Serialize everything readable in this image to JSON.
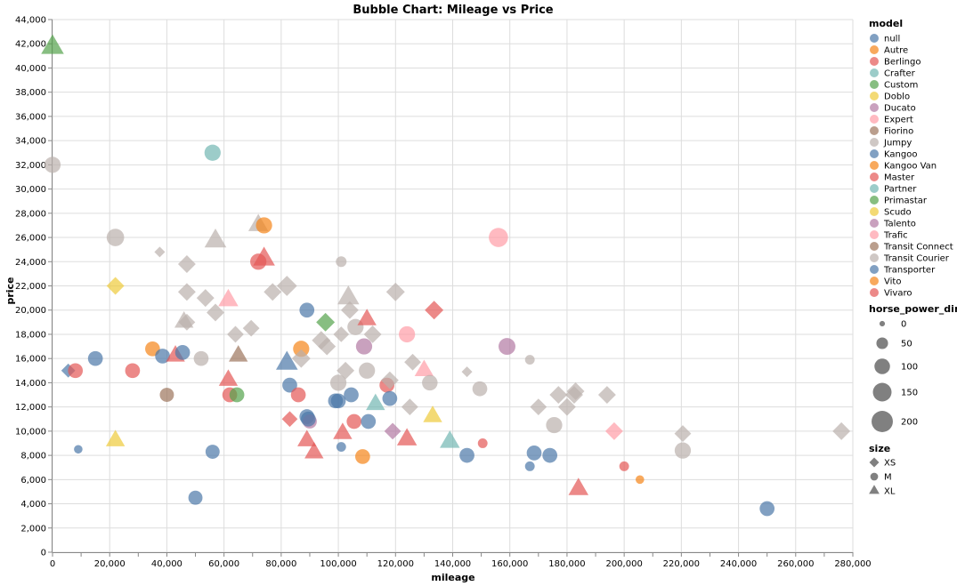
{
  "chart_data": {
    "type": "scatter",
    "title": "Bubble Chart: Mileage vs Price",
    "xlabel": "mileage",
    "ylabel": "price",
    "xlim": [
      0,
      280000
    ],
    "ylim": [
      0,
      44000
    ],
    "x_ticks": [
      0,
      20000,
      40000,
      60000,
      80000,
      100000,
      120000,
      140000,
      160000,
      180000,
      200000,
      220000,
      240000,
      260000,
      280000
    ],
    "x_tick_labels": [
      "0",
      "20,000",
      "40,000",
      "60,000",
      "80,000",
      "100,000",
      "120,000",
      "140,000",
      "160,000",
      "180,000",
      "200,000",
      "220,000",
      "240,000",
      "260,000",
      "280,000"
    ],
    "y_ticks": [
      0,
      2000,
      4000,
      6000,
      8000,
      10000,
      12000,
      14000,
      16000,
      18000,
      20000,
      22000,
      24000,
      26000,
      28000,
      30000,
      32000,
      34000,
      36000,
      38000,
      40000,
      42000,
      44000
    ],
    "y_tick_labels": [
      "0",
      "2,000",
      "4,000",
      "6,000",
      "8,000",
      "10,000",
      "12,000",
      "14,000",
      "16,000",
      "18,000",
      "20,000",
      "22,000",
      "24,000",
      "26,000",
      "28,000",
      "30,000",
      "32,000",
      "34,000",
      "36,000",
      "38,000",
      "40,000",
      "42,000",
      "44,000"
    ],
    "grid": true,
    "legend_placement": "right",
    "color_legend": {
      "title": "model",
      "entries": [
        {
          "label": "null",
          "color": "#4c78a8"
        },
        {
          "label": "Autre",
          "color": "#f58518"
        },
        {
          "label": "Berlingo",
          "color": "#e45756"
        },
        {
          "label": "Crafter",
          "color": "#72b7b2"
        },
        {
          "label": "Custom",
          "color": "#54a24b"
        },
        {
          "label": "Doblo",
          "color": "#eeca3b"
        },
        {
          "label": "Ducato",
          "color": "#b279a2"
        },
        {
          "label": "Expert",
          "color": "#ff9da6"
        },
        {
          "label": "Fiorino",
          "color": "#9d755d"
        },
        {
          "label": "Jumpy",
          "color": "#bab0ac"
        },
        {
          "label": "Kangoo",
          "color": "#4c78a8"
        },
        {
          "label": "Kangoo Van",
          "color": "#f58518"
        },
        {
          "label": "Master",
          "color": "#e45756"
        },
        {
          "label": "Partner",
          "color": "#72b7b2"
        },
        {
          "label": "Primastar",
          "color": "#54a24b"
        },
        {
          "label": "Scudo",
          "color": "#eeca3b"
        },
        {
          "label": "Talento",
          "color": "#b279a2"
        },
        {
          "label": "Trafic",
          "color": "#ff9da6"
        },
        {
          "label": "Transit Connect",
          "color": "#9d755d"
        },
        {
          "label": "Transit Courier",
          "color": "#bab0ac"
        },
        {
          "label": "Transporter",
          "color": "#4c78a8"
        },
        {
          "label": "Vito",
          "color": "#f58518"
        },
        {
          "label": "Vivaro",
          "color": "#e45756"
        }
      ]
    },
    "size_legend": {
      "title": "horse_power_din",
      "entries": [
        {
          "label": "0",
          "value": 0
        },
        {
          "label": "50",
          "value": 50
        },
        {
          "label": "100",
          "value": 100
        },
        {
          "label": "150",
          "value": 150
        },
        {
          "label": "200",
          "value": 200
        }
      ]
    },
    "shape_legend": {
      "title": "size",
      "entries": [
        {
          "label": "XS",
          "shape": "diamond"
        },
        {
          "label": "M",
          "shape": "circle"
        },
        {
          "label": "XL",
          "shape": "triangle"
        }
      ]
    },
    "points": [
      {
        "x": 0,
        "y": 41700,
        "shape": "triangle",
        "color": "#54a24b",
        "hp": 120
      },
      {
        "x": 0,
        "y": 32000,
        "shape": "circle",
        "color": "#bab0ac",
        "hp": 110
      },
      {
        "x": 5500,
        "y": 15000,
        "shape": "diamond",
        "color": "#4c78a8",
        "hp": 45
      },
      {
        "x": 8000,
        "y": 15000,
        "shape": "circle",
        "color": "#e45756",
        "hp": 90
      },
      {
        "x": 9000,
        "y": 8500,
        "shape": "circle",
        "color": "#4c78a8",
        "hp": 20
      },
      {
        "x": 15000,
        "y": 16000,
        "shape": "circle",
        "color": "#4c78a8",
        "hp": 90
      },
      {
        "x": 22000,
        "y": 26000,
        "shape": "circle",
        "color": "#bab0ac",
        "hp": 130
      },
      {
        "x": 22000,
        "y": 22000,
        "shape": "diamond",
        "color": "#eeca3b",
        "hp": 80
      },
      {
        "x": 22000,
        "y": 9200,
        "shape": "triangle",
        "color": "#eeca3b",
        "hp": 80
      },
      {
        "x": 28000,
        "y": 15000,
        "shape": "circle",
        "color": "#e45756",
        "hp": 90
      },
      {
        "x": 35000,
        "y": 16800,
        "shape": "circle",
        "color": "#f58518",
        "hp": 90
      },
      {
        "x": 37500,
        "y": 24800,
        "shape": "diamond",
        "color": "#bab0ac",
        "hp": 20
      },
      {
        "x": 38500,
        "y": 16200,
        "shape": "circle",
        "color": "#4c78a8",
        "hp": 90
      },
      {
        "x": 40000,
        "y": 13000,
        "shape": "circle",
        "color": "#9d755d",
        "hp": 80
      },
      {
        "x": 43000,
        "y": 16200,
        "shape": "triangle",
        "color": "#e45756",
        "hp": 80
      },
      {
        "x": 45500,
        "y": 16500,
        "shape": "circle",
        "color": "#4c78a8",
        "hp": 90
      },
      {
        "x": 46000,
        "y": 19000,
        "shape": "triangle",
        "color": "#bab0ac",
        "hp": 80
      },
      {
        "x": 47000,
        "y": 23800,
        "shape": "diamond",
        "color": "#bab0ac",
        "hp": 80
      },
      {
        "x": 47000,
        "y": 21500,
        "shape": "diamond",
        "color": "#bab0ac",
        "hp": 80
      },
      {
        "x": 47000,
        "y": 19000,
        "shape": "diamond",
        "color": "#bab0ac",
        "hp": 70
      },
      {
        "x": 50000,
        "y": 4500,
        "shape": "circle",
        "color": "#4c78a8",
        "hp": 80
      },
      {
        "x": 52000,
        "y": 16000,
        "shape": "circle",
        "color": "#bab0ac",
        "hp": 90
      },
      {
        "x": 53500,
        "y": 21000,
        "shape": "diamond",
        "color": "#bab0ac",
        "hp": 80
      },
      {
        "x": 56000,
        "y": 33000,
        "shape": "circle",
        "color": "#72b7b2",
        "hp": 110
      },
      {
        "x": 56000,
        "y": 8300,
        "shape": "circle",
        "color": "#4c78a8",
        "hp": 80
      },
      {
        "x": 57000,
        "y": 25700,
        "shape": "triangle",
        "color": "#bab0ac",
        "hp": 110
      },
      {
        "x": 57000,
        "y": 19800,
        "shape": "diamond",
        "color": "#bab0ac",
        "hp": 80
      },
      {
        "x": 61500,
        "y": 20800,
        "shape": "triangle",
        "color": "#ff9da6",
        "hp": 90
      },
      {
        "x": 61500,
        "y": 14200,
        "shape": "triangle",
        "color": "#e45756",
        "hp": 80
      },
      {
        "x": 62000,
        "y": 13000,
        "shape": "circle",
        "color": "#e45756",
        "hp": 90
      },
      {
        "x": 64000,
        "y": 18000,
        "shape": "diamond",
        "color": "#bab0ac",
        "hp": 70
      },
      {
        "x": 64500,
        "y": 13000,
        "shape": "circle",
        "color": "#54a24b",
        "hp": 90
      },
      {
        "x": 65000,
        "y": 16200,
        "shape": "triangle",
        "color": "#9d755d",
        "hp": 80
      },
      {
        "x": 69500,
        "y": 18500,
        "shape": "diamond",
        "color": "#bab0ac",
        "hp": 70
      },
      {
        "x": 72000,
        "y": 27000,
        "shape": "triangle",
        "color": "#bab0ac",
        "hp": 90
      },
      {
        "x": 72000,
        "y": 24000,
        "shape": "circle",
        "color": "#e45756",
        "hp": 110
      },
      {
        "x": 74000,
        "y": 27000,
        "shape": "circle",
        "color": "#f58518",
        "hp": 110
      },
      {
        "x": 74000,
        "y": 24200,
        "shape": "triangle",
        "color": "#e45756",
        "hp": 110
      },
      {
        "x": 77000,
        "y": 21500,
        "shape": "diamond",
        "color": "#bab0ac",
        "hp": 80
      },
      {
        "x": 82000,
        "y": 15600,
        "shape": "triangle",
        "color": "#4c78a8",
        "hp": 110
      },
      {
        "x": 82000,
        "y": 22000,
        "shape": "diamond",
        "color": "#bab0ac",
        "hp": 110
      },
      {
        "x": 83000,
        "y": 11000,
        "shape": "diamond",
        "color": "#e45756",
        "hp": 60
      },
      {
        "x": 83000,
        "y": 13800,
        "shape": "circle",
        "color": "#4c78a8",
        "hp": 90
      },
      {
        "x": 86000,
        "y": 13000,
        "shape": "circle",
        "color": "#e45756",
        "hp": 90
      },
      {
        "x": 87000,
        "y": 16800,
        "shape": "circle",
        "color": "#f58518",
        "hp": 110
      },
      {
        "x": 87000,
        "y": 16000,
        "shape": "diamond",
        "color": "#bab0ac",
        "hp": 90
      },
      {
        "x": 89000,
        "y": 20000,
        "shape": "circle",
        "color": "#4c78a8",
        "hp": 90
      },
      {
        "x": 89000,
        "y": 11200,
        "shape": "circle",
        "color": "#4c78a8",
        "hp": 90
      },
      {
        "x": 89000,
        "y": 9200,
        "shape": "triangle",
        "color": "#e45756",
        "hp": 80
      },
      {
        "x": 90000,
        "y": 10800,
        "shape": "circle",
        "color": "#b279a2",
        "hp": 80
      },
      {
        "x": 89500,
        "y": 11000,
        "shape": "circle",
        "color": "#4c78a8",
        "hp": 90
      },
      {
        "x": 91500,
        "y": 8200,
        "shape": "triangle",
        "color": "#e45756",
        "hp": 80
      },
      {
        "x": 94000,
        "y": 17500,
        "shape": "diamond",
        "color": "#bab0ac",
        "hp": 90
      },
      {
        "x": 95500,
        "y": 19000,
        "shape": "diamond",
        "color": "#54a24b",
        "hp": 90
      },
      {
        "x": 96000,
        "y": 17000,
        "shape": "diamond",
        "color": "#bab0ac",
        "hp": 80
      },
      {
        "x": 99000,
        "y": 12500,
        "shape": "circle",
        "color": "#4c78a8",
        "hp": 90
      },
      {
        "x": 100000,
        "y": 14000,
        "shape": "circle",
        "color": "#bab0ac",
        "hp": 110
      },
      {
        "x": 100000,
        "y": 12500,
        "shape": "circle",
        "color": "#4c78a8",
        "hp": 90
      },
      {
        "x": 101000,
        "y": 24000,
        "shape": "circle",
        "color": "#bab0ac",
        "hp": 40
      },
      {
        "x": 101000,
        "y": 18000,
        "shape": "diamond",
        "color": "#bab0ac",
        "hp": 60
      },
      {
        "x": 101000,
        "y": 8700,
        "shape": "circle",
        "color": "#4c78a8",
        "hp": 30
      },
      {
        "x": 101500,
        "y": 9800,
        "shape": "triangle",
        "color": "#e45756",
        "hp": 80
      },
      {
        "x": 102500,
        "y": 15000,
        "shape": "diamond",
        "color": "#bab0ac",
        "hp": 80
      },
      {
        "x": 103500,
        "y": 21000,
        "shape": "triangle",
        "color": "#bab0ac",
        "hp": 110
      },
      {
        "x": 104000,
        "y": 20000,
        "shape": "diamond",
        "color": "#bab0ac",
        "hp": 80
      },
      {
        "x": 104500,
        "y": 13000,
        "shape": "circle",
        "color": "#4c78a8",
        "hp": 90
      },
      {
        "x": 105500,
        "y": 10800,
        "shape": "circle",
        "color": "#e45756",
        "hp": 90
      },
      {
        "x": 106000,
        "y": 18600,
        "shape": "circle",
        "color": "#bab0ac",
        "hp": 110
      },
      {
        "x": 108500,
        "y": 7900,
        "shape": "circle",
        "color": "#f58518",
        "hp": 90
      },
      {
        "x": 109000,
        "y": 17000,
        "shape": "circle",
        "color": "#b279a2",
        "hp": 110
      },
      {
        "x": 110000,
        "y": 15000,
        "shape": "circle",
        "color": "#bab0ac",
        "hp": 110
      },
      {
        "x": 110000,
        "y": 19200,
        "shape": "triangle",
        "color": "#e45756",
        "hp": 80
      },
      {
        "x": 110500,
        "y": 10800,
        "shape": "circle",
        "color": "#4c78a8",
        "hp": 90
      },
      {
        "x": 112000,
        "y": 18000,
        "shape": "diamond",
        "color": "#bab0ac",
        "hp": 80
      },
      {
        "x": 113000,
        "y": 12200,
        "shape": "triangle",
        "color": "#72b7b2",
        "hp": 80
      },
      {
        "x": 117000,
        "y": 13800,
        "shape": "circle",
        "color": "#e45756",
        "hp": 90
      },
      {
        "x": 118000,
        "y": 14200,
        "shape": "diamond",
        "color": "#bab0ac",
        "hp": 80
      },
      {
        "x": 118000,
        "y": 12700,
        "shape": "circle",
        "color": "#4c78a8",
        "hp": 90
      },
      {
        "x": 119000,
        "y": 10000,
        "shape": "diamond",
        "color": "#b279a2",
        "hp": 70
      },
      {
        "x": 120000,
        "y": 21500,
        "shape": "diamond",
        "color": "#bab0ac",
        "hp": 90
      },
      {
        "x": 124000,
        "y": 18000,
        "shape": "circle",
        "color": "#ff9da6",
        "hp": 110
      },
      {
        "x": 124000,
        "y": 9300,
        "shape": "triangle",
        "color": "#e45756",
        "hp": 90
      },
      {
        "x": 125000,
        "y": 12000,
        "shape": "diamond",
        "color": "#bab0ac",
        "hp": 70
      },
      {
        "x": 126000,
        "y": 15700,
        "shape": "diamond",
        "color": "#bab0ac",
        "hp": 70
      },
      {
        "x": 130000,
        "y": 15000,
        "shape": "triangle",
        "color": "#ff9da6",
        "hp": 80
      },
      {
        "x": 132000,
        "y": 14000,
        "shape": "circle",
        "color": "#bab0ac",
        "hp": 100
      },
      {
        "x": 133000,
        "y": 11200,
        "shape": "triangle",
        "color": "#eeca3b",
        "hp": 80
      },
      {
        "x": 133500,
        "y": 20000,
        "shape": "diamond",
        "color": "#e45756",
        "hp": 90
      },
      {
        "x": 139000,
        "y": 9100,
        "shape": "triangle",
        "color": "#72b7b2",
        "hp": 90
      },
      {
        "x": 145000,
        "y": 8000,
        "shape": "circle",
        "color": "#4c78a8",
        "hp": 90
      },
      {
        "x": 145000,
        "y": 14900,
        "shape": "diamond",
        "color": "#bab0ac",
        "hp": 20
      },
      {
        "x": 149500,
        "y": 13500,
        "shape": "circle",
        "color": "#bab0ac",
        "hp": 90
      },
      {
        "x": 150500,
        "y": 9000,
        "shape": "circle",
        "color": "#e45756",
        "hp": 30
      },
      {
        "x": 156000,
        "y": 26000,
        "shape": "circle",
        "color": "#ff9da6",
        "hp": 160
      },
      {
        "x": 159000,
        "y": 17000,
        "shape": "circle",
        "color": "#b279a2",
        "hp": 120
      },
      {
        "x": 167000,
        "y": 15900,
        "shape": "circle",
        "color": "#bab0ac",
        "hp": 30
      },
      {
        "x": 167000,
        "y": 7100,
        "shape": "circle",
        "color": "#4c78a8",
        "hp": 30
      },
      {
        "x": 168500,
        "y": 8200,
        "shape": "circle",
        "color": "#4c78a8",
        "hp": 90
      },
      {
        "x": 170000,
        "y": 12000,
        "shape": "diamond",
        "color": "#bab0ac",
        "hp": 70
      },
      {
        "x": 174000,
        "y": 8000,
        "shape": "circle",
        "color": "#4c78a8",
        "hp": 90
      },
      {
        "x": 175500,
        "y": 10500,
        "shape": "circle",
        "color": "#bab0ac",
        "hp": 110
      },
      {
        "x": 177000,
        "y": 13000,
        "shape": "diamond",
        "color": "#bab0ac",
        "hp": 80
      },
      {
        "x": 180000,
        "y": 12000,
        "shape": "diamond",
        "color": "#bab0ac",
        "hp": 80
      },
      {
        "x": 182500,
        "y": 13000,
        "shape": "diamond",
        "color": "#bab0ac",
        "hp": 80
      },
      {
        "x": 183000,
        "y": 13300,
        "shape": "diamond",
        "color": "#bab0ac",
        "hp": 80
      },
      {
        "x": 184000,
        "y": 5200,
        "shape": "triangle",
        "color": "#e45756",
        "hp": 90
      },
      {
        "x": 194000,
        "y": 13000,
        "shape": "diamond",
        "color": "#bab0ac",
        "hp": 80
      },
      {
        "x": 196500,
        "y": 10000,
        "shape": "diamond",
        "color": "#ff9da6",
        "hp": 80
      },
      {
        "x": 200000,
        "y": 7100,
        "shape": "circle",
        "color": "#e45756",
        "hp": 30
      },
      {
        "x": 205500,
        "y": 6000,
        "shape": "circle",
        "color": "#f58518",
        "hp": 20
      },
      {
        "x": 220500,
        "y": 9800,
        "shape": "diamond",
        "color": "#bab0ac",
        "hp": 70
      },
      {
        "x": 220500,
        "y": 8400,
        "shape": "circle",
        "color": "#bab0ac",
        "hp": 110
      },
      {
        "x": 250000,
        "y": 3600,
        "shape": "circle",
        "color": "#4c78a8",
        "hp": 90
      },
      {
        "x": 276000,
        "y": 10000,
        "shape": "diamond",
        "color": "#bab0ac",
        "hp": 80
      }
    ]
  }
}
